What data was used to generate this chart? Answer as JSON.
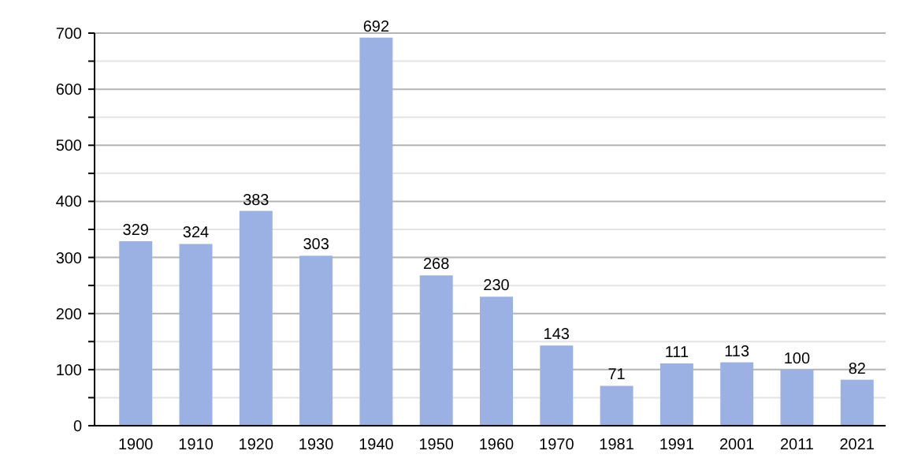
{
  "chart_data": {
    "type": "bar",
    "categories": [
      "1900",
      "1910",
      "1920",
      "1930",
      "1940",
      "1950",
      "1960",
      "1970",
      "1981",
      "1991",
      "2001",
      "2011",
      "2021"
    ],
    "values": [
      329,
      324,
      383,
      303,
      692,
      268,
      230,
      143,
      71,
      111,
      113,
      100,
      82
    ],
    "color": "#9bb1e4",
    "data_labels": true,
    "grid": "y",
    "ylim": [
      0,
      700
    ],
    "yticks": [
      0,
      {
        "value": 50,
        "label": null
      },
      100,
      {
        "value": 150,
        "label": null
      },
      200,
      {
        "value": 250,
        "label": null
      },
      300,
      {
        "value": 350,
        "label": null
      },
      400,
      {
        "value": 450,
        "label": null
      },
      500,
      {
        "value": 550,
        "label": null
      },
      600,
      {
        "value": 650,
        "label": null
      },
      700
    ]
  }
}
